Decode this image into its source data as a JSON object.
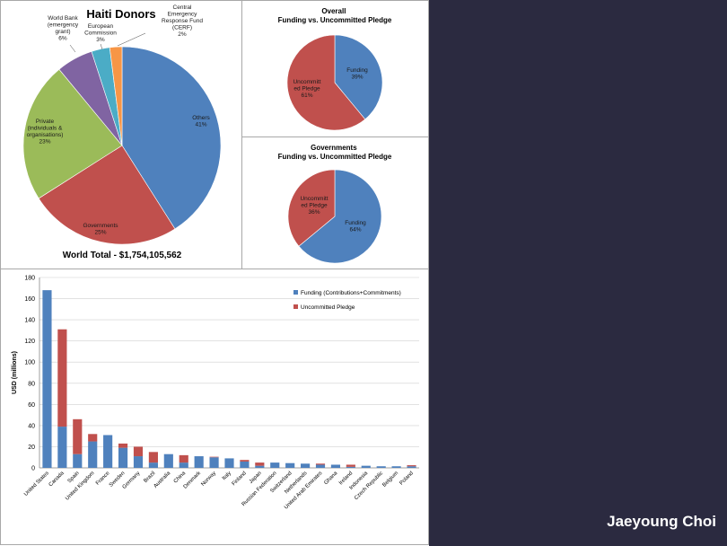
{
  "author": "Jaeyoung Choi",
  "colors": {
    "blue": "#4f81bd",
    "red": "#c0504d",
    "green": "#9bbb59",
    "purple": "#8064a2",
    "teal": "#4bacc6",
    "orange": "#f79646",
    "panel_bg": "#2b2a40"
  },
  "chart_data": [
    {
      "type": "pie",
      "title": "Haiti Donors",
      "total_text": "World Total - $1,754,105,562",
      "slices": [
        {
          "label": [
            "Others",
            "41%"
          ],
          "value": 41,
          "color": "#4f81bd"
        },
        {
          "label": [
            "Governments",
            "25%"
          ],
          "value": 25,
          "color": "#c0504d"
        },
        {
          "label": [
            "Private",
            "(individuals &",
            "organisations)",
            "23%"
          ],
          "value": 23,
          "color": "#9bbb59"
        },
        {
          "label": [
            "World Bank",
            "(emergency",
            "grant)",
            "6%"
          ],
          "value": 6,
          "color": "#8064a2"
        },
        {
          "label": [
            "European",
            "Commission",
            "3%"
          ],
          "value": 3,
          "color": "#4bacc6"
        },
        {
          "label": [
            "Central",
            "Emergency",
            "Response Fund",
            "(CERF)",
            "2%"
          ],
          "value": 2,
          "color": "#f79646"
        }
      ]
    },
    {
      "type": "pie",
      "title": [
        "Overall",
        "Funding vs. Uncommitted Pledge"
      ],
      "slices": [
        {
          "label": [
            "Funding",
            "39%"
          ],
          "value": 39,
          "color": "#4f81bd"
        },
        {
          "label": [
            "Uncommitt",
            "ed Pledge",
            "61%"
          ],
          "value": 61,
          "color": "#c0504d"
        }
      ]
    },
    {
      "type": "pie",
      "title": [
        "Governments",
        "Funding vs. Uncommitted Pledge"
      ],
      "slices": [
        {
          "label": [
            "Funding",
            "64%"
          ],
          "value": 64,
          "color": "#4f81bd"
        },
        {
          "label": [
            "Uncommitt",
            "ed Pledge",
            "36%"
          ],
          "value": 36,
          "color": "#c0504d"
        }
      ]
    },
    {
      "type": "bar",
      "stacked": true,
      "ylabel": "USD (millions)",
      "ylim": [
        0,
        180
      ],
      "yticks": [
        0,
        20,
        40,
        60,
        80,
        100,
        120,
        140,
        160,
        180
      ],
      "grid": true,
      "legend_position": "top-right",
      "categories": [
        "United States",
        "Canada",
        "Spain",
        "United Kingdom",
        "France",
        "Sweden",
        "Germany",
        "Brazil",
        "Australia",
        "China",
        "Denmark",
        "Norway",
        "Italy",
        "Finland",
        "Japan",
        "Russian Federation",
        "Switzerland",
        "Netherlands",
        "United Arab Emirates",
        "Ghana",
        "Ireland",
        "Indonesia",
        "Czech Republic",
        "Belgium",
        "Poland"
      ],
      "series": [
        {
          "name": "Funding (Contributions+Commitments)",
          "color": "#4f81bd",
          "values": [
            168,
            39,
            13,
            25,
            31,
            19,
            11,
            5,
            13,
            5,
            11,
            10,
            9,
            6,
            2,
            5,
            4.5,
            4,
            3,
            3,
            1,
            2,
            1.5,
            1.5,
            1.5
          ]
        },
        {
          "name": "Uncommitted Pledge",
          "color": "#c0504d",
          "values": [
            0,
            92,
            33,
            7,
            0,
            4,
            9,
            10,
            0,
            7,
            0,
            0.5,
            0,
            1.5,
            3,
            0,
            0,
            0,
            1,
            0,
            2,
            0,
            0,
            0,
            1
          ]
        }
      ]
    }
  ]
}
